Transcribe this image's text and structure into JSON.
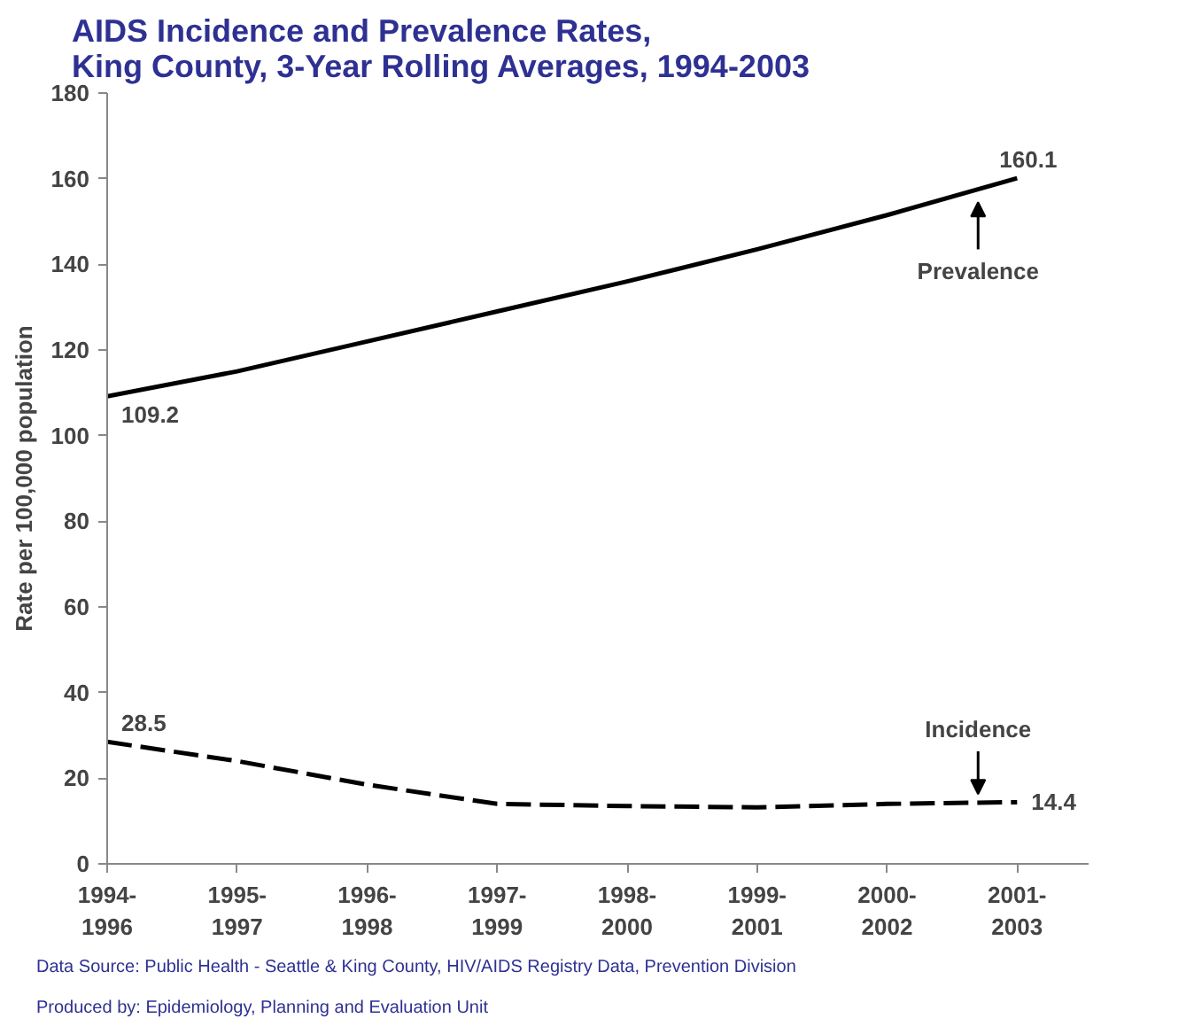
{
  "chart_data": {
    "type": "line",
    "title": "AIDS Incidence and Prevalence Rates,\nKing County, 3-Year Rolling Averages, 1994-2003",
    "ylabel": "Rate per 100,000 population",
    "categories": [
      "1994-\n1996",
      "1995-\n1997",
      "1996-\n1998",
      "1997-\n1999",
      "1998-\n2000",
      "1999-\n2001",
      "2000-\n2002",
      "2001-\n2003"
    ],
    "series": [
      {
        "color": "#000000",
        "line_style": "solid",
        "values": [
          109.2,
          115,
          122,
          129,
          136,
          143.5,
          151.5,
          160.1
        ],
        "value_labels": [
          "109.2",
          null,
          null,
          null,
          null,
          null,
          null,
          "160.1"
        ]
      },
      {
        "color": "#000000",
        "line_style": "dashed",
        "values": [
          28.5,
          24,
          18.5,
          14,
          13.5,
          13.2,
          14,
          14.4
        ],
        "value_labels": [
          "28.5",
          null,
          null,
          null,
          null,
          null,
          null,
          "14.4"
        ]
      }
    ],
    "ylim": [
      0,
      180
    ],
    "yticks": [
      0,
      20,
      40,
      60,
      80,
      100,
      120,
      140,
      160,
      180
    ],
    "grid": false,
    "marker": "none",
    "annotations": [
      {
        "text": "Prevalence",
        "y": 157.5
      },
      {
        "text": "Incidence",
        "y": 14.3
      },
      "Data Source: Public Health - Seattle & King County, HIV/AIDS Registry Data, Prevention Division",
      "Produced by: Epidemiology, Planning and Evaluation Unit"
    ]
  }
}
